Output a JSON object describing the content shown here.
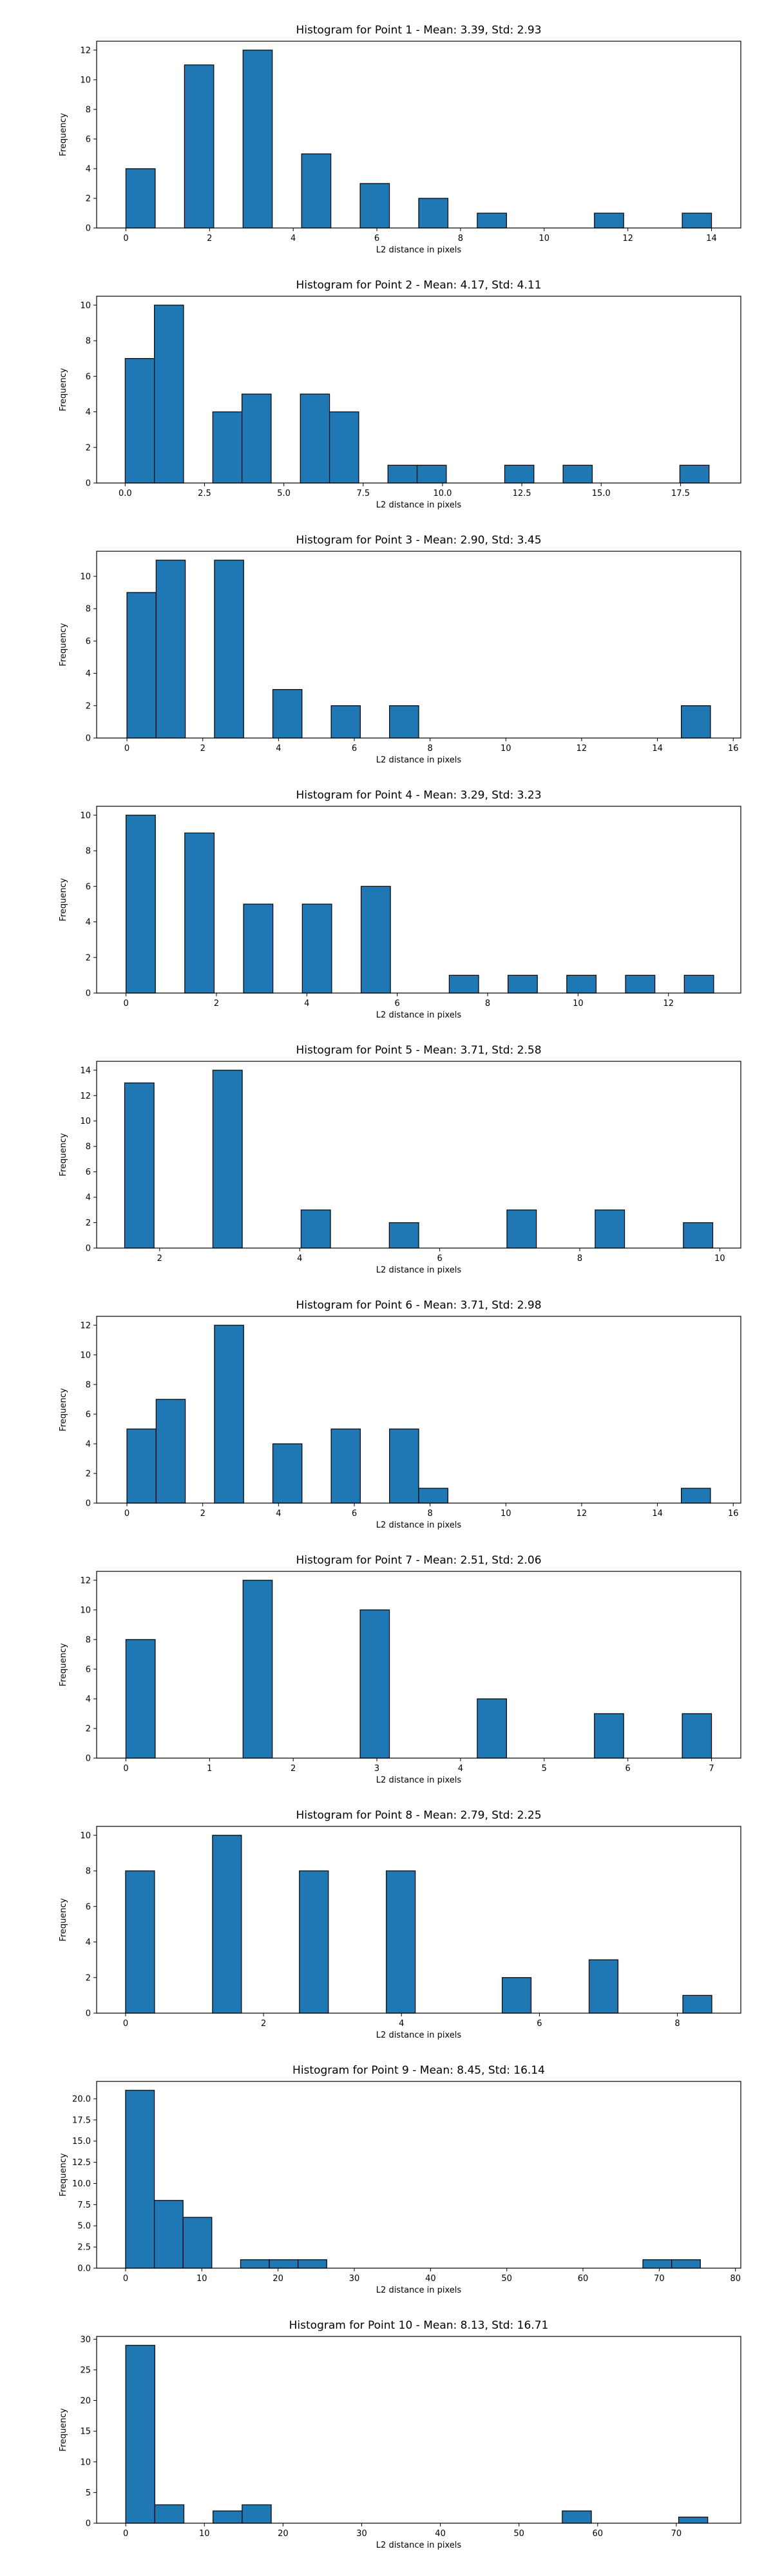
{
  "chart_data": [
    {
      "type": "bar",
      "title": "Histogram for Point 1 - Mean: 3.39, Std: 2.93",
      "xlabel": "L2 distance in pixels",
      "ylabel": "Frequency",
      "xlim": [
        -0.7,
        14.7
      ],
      "ylim": [
        0,
        12.6
      ],
      "xticks": [
        "0",
        "2",
        "4",
        "6",
        "8",
        "10",
        "12",
        "14"
      ],
      "yticks": [
        "0",
        "2",
        "4",
        "6",
        "8",
        "10",
        "12"
      ],
      "bins": [
        [
          0,
          0.7,
          4
        ],
        [
          1.4,
          2.1,
          11
        ],
        [
          2.8,
          3.5,
          12
        ],
        [
          4.2,
          4.9,
          5
        ],
        [
          5.6,
          6.3,
          3
        ],
        [
          7.0,
          7.7,
          2
        ],
        [
          8.4,
          9.1,
          1
        ],
        [
          11.2,
          11.9,
          1
        ],
        [
          13.3,
          14.0,
          1
        ]
      ]
    },
    {
      "type": "bar",
      "title": "Histogram for Point 2 - Mean: 4.17, Std: 4.11",
      "xlabel": "L2 distance in pixels",
      "ylabel": "Frequency",
      "xlim": [
        -0.9,
        19.4
      ],
      "ylim": [
        0,
        10.5
      ],
      "xticks": [
        "0.0",
        "2.5",
        "5.0",
        "7.5",
        "10.0",
        "12.5",
        "15.0",
        "17.5"
      ],
      "yticks": [
        "0",
        "2",
        "4",
        "6",
        "8",
        "10"
      ],
      "bins": [
        [
          0,
          0.92,
          7
        ],
        [
          0.92,
          1.84,
          10
        ],
        [
          2.76,
          3.68,
          4
        ],
        [
          3.68,
          4.6,
          5
        ],
        [
          5.52,
          6.44,
          5
        ],
        [
          6.44,
          7.36,
          4
        ],
        [
          8.28,
          9.2,
          1
        ],
        [
          9.2,
          10.12,
          1
        ],
        [
          11.96,
          12.88,
          1
        ],
        [
          13.8,
          14.72,
          1
        ],
        [
          17.48,
          18.4,
          1
        ]
      ]
    },
    {
      "type": "bar",
      "title": "Histogram for Point 3 - Mean: 2.90, Std: 3.45",
      "xlabel": "L2 distance in pixels",
      "ylabel": "Frequency",
      "xlim": [
        -0.8,
        16.2
      ],
      "ylim": [
        0,
        11.55
      ],
      "xticks": [
        "0",
        "2",
        "4",
        "6",
        "8",
        "10",
        "12",
        "14",
        "16"
      ],
      "yticks": [
        "0",
        "2",
        "4",
        "6",
        "8",
        "10"
      ],
      "bins": [
        [
          0,
          0.77,
          9
        ],
        [
          0.77,
          1.54,
          11
        ],
        [
          2.31,
          3.08,
          11
        ],
        [
          3.85,
          4.62,
          3
        ],
        [
          5.39,
          6.16,
          2
        ],
        [
          6.93,
          7.7,
          2
        ],
        [
          14.63,
          15.4,
          2
        ]
      ]
    },
    {
      "type": "bar",
      "title": "Histogram for Point 4 - Mean: 3.29, Std: 3.23",
      "xlabel": "L2 distance in pixels",
      "ylabel": "Frequency",
      "xlim": [
        -0.65,
        13.6
      ],
      "ylim": [
        0,
        10.5
      ],
      "xticks": [
        "0",
        "2",
        "4",
        "6",
        "8",
        "10",
        "12"
      ],
      "yticks": [
        "0",
        "2",
        "4",
        "6",
        "8",
        "10"
      ],
      "bins": [
        [
          0,
          0.65,
          10
        ],
        [
          1.3,
          1.95,
          9
        ],
        [
          2.6,
          3.25,
          5
        ],
        [
          3.9,
          4.55,
          5
        ],
        [
          5.2,
          5.85,
          6
        ],
        [
          7.15,
          7.8,
          1
        ],
        [
          8.45,
          9.1,
          1
        ],
        [
          9.75,
          10.4,
          1
        ],
        [
          11.05,
          11.7,
          1
        ],
        [
          12.35,
          13.0,
          1
        ]
      ]
    },
    {
      "type": "bar",
      "title": "Histogram for Point 5 - Mean: 3.71, Std: 2.58",
      "xlabel": "L2 distance in pixels",
      "ylabel": "Frequency",
      "xlim": [
        1.1,
        10.3
      ],
      "ylim": [
        0,
        14.7
      ],
      "xticks": [
        "2",
        "4",
        "6",
        "8",
        "10"
      ],
      "yticks": [
        "0",
        "2",
        "4",
        "6",
        "8",
        "10",
        "12",
        "14"
      ],
      "bins": [
        [
          1.5,
          1.92,
          13
        ],
        [
          2.76,
          3.18,
          14
        ],
        [
          4.02,
          4.44,
          3
        ],
        [
          5.28,
          5.7,
          2
        ],
        [
          6.96,
          7.38,
          3
        ],
        [
          8.22,
          8.64,
          3
        ],
        [
          9.48,
          9.9,
          2
        ]
      ]
    },
    {
      "type": "bar",
      "title": "Histogram for Point 6 - Mean: 3.71, Std: 2.98",
      "xlabel": "L2 distance in pixels",
      "ylabel": "Frequency",
      "xlim": [
        -0.8,
        16.2
      ],
      "ylim": [
        0,
        12.6
      ],
      "xticks": [
        "0",
        "2",
        "4",
        "6",
        "8",
        "10",
        "12",
        "14",
        "16"
      ],
      "yticks": [
        "0",
        "2",
        "4",
        "6",
        "8",
        "10",
        "12"
      ],
      "bins": [
        [
          0,
          0.77,
          5
        ],
        [
          0.77,
          1.54,
          7
        ],
        [
          2.31,
          3.08,
          12
        ],
        [
          3.85,
          4.62,
          4
        ],
        [
          5.39,
          6.16,
          5
        ],
        [
          6.93,
          7.7,
          5
        ],
        [
          7.7,
          8.47,
          1
        ],
        [
          14.63,
          15.4,
          1
        ]
      ]
    },
    {
      "type": "bar",
      "title": "Histogram for Point 7 - Mean: 2.51, Std: 2.06",
      "xlabel": "L2 distance in pixels",
      "ylabel": "Frequency",
      "xlim": [
        -0.35,
        7.35
      ],
      "ylim": [
        0,
        12.6
      ],
      "xticks": [
        "0",
        "1",
        "2",
        "3",
        "4",
        "5",
        "6",
        "7"
      ],
      "yticks": [
        "0",
        "2",
        "4",
        "6",
        "8",
        "10",
        "12"
      ],
      "bins": [
        [
          0,
          0.35,
          8
        ],
        [
          1.4,
          1.75,
          12
        ],
        [
          2.8,
          3.15,
          10
        ],
        [
          4.2,
          4.55,
          4
        ],
        [
          5.6,
          5.95,
          3
        ],
        [
          6.65,
          7.0,
          3
        ]
      ]
    },
    {
      "type": "bar",
      "title": "Histogram for Point 8 - Mean: 2.79, Std: 2.25",
      "xlabel": "L2 distance in pixels",
      "ylabel": "Frequency",
      "xlim": [
        -0.42,
        8.92
      ],
      "ylim": [
        0,
        10.5
      ],
      "xticks": [
        "0",
        "2",
        "4",
        "6",
        "8"
      ],
      "yticks": [
        "0",
        "2",
        "4",
        "6",
        "8",
        "10"
      ],
      "bins": [
        [
          0,
          0.42,
          8
        ],
        [
          1.26,
          1.68,
          10
        ],
        [
          2.52,
          2.94,
          8
        ],
        [
          3.78,
          4.2,
          8
        ],
        [
          5.46,
          5.88,
          2
        ],
        [
          6.72,
          7.14,
          3
        ],
        [
          8.08,
          8.5,
          1
        ]
      ]
    },
    {
      "type": "bar",
      "title": "Histogram for Point 9 - Mean: 8.45, Std: 16.14",
      "xlabel": "L2 distance in pixels",
      "ylabel": "Frequency",
      "xlim": [
        -3.8,
        80.7
      ],
      "ylim": [
        0,
        22.05
      ],
      "xticks": [
        "0",
        "10",
        "20",
        "30",
        "40",
        "50",
        "60",
        "70",
        "80"
      ],
      "yticks": [
        "0.0",
        "2.5",
        "5.0",
        "7.5",
        "10.0",
        "12.5",
        "15.0",
        "17.5",
        "20.0"
      ],
      "bins": [
        [
          0,
          3.77,
          21
        ],
        [
          3.77,
          7.54,
          8
        ],
        [
          7.54,
          11.31,
          6
        ],
        [
          15.08,
          18.85,
          1
        ],
        [
          18.85,
          22.62,
          1
        ],
        [
          22.62,
          26.39,
          1
        ],
        [
          67.86,
          71.63,
          1
        ],
        [
          71.63,
          75.4,
          1
        ]
      ]
    },
    {
      "type": "bar",
      "title": "Histogram for Point 10 - Mean: 8.13, Std: 16.71",
      "xlabel": "L2 distance in pixels",
      "ylabel": "Frequency",
      "xlim": [
        -3.7,
        78.2
      ],
      "ylim": [
        0,
        30.45
      ],
      "xticks": [
        "0",
        "10",
        "20",
        "30",
        "40",
        "50",
        "60",
        "70"
      ],
      "yticks": [
        "0",
        "5",
        "10",
        "15",
        "20",
        "25",
        "30"
      ],
      "bins": [
        [
          0,
          3.7,
          29
        ],
        [
          3.7,
          7.4,
          3
        ],
        [
          11.1,
          14.8,
          2
        ],
        [
          14.8,
          18.5,
          3
        ],
        [
          55.5,
          59.2,
          2
        ],
        [
          70.3,
          74.0,
          1
        ]
      ]
    }
  ]
}
